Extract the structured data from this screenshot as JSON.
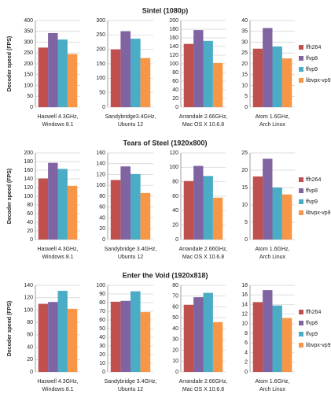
{
  "chart_data": [
    {
      "type": "bar",
      "title": "Sintel (1080p)",
      "y_label": "Decoder speed (FPS)",
      "grid": true,
      "series": [
        {
          "name": "ffh264",
          "color": "#c0504d"
        },
        {
          "name": "ffvp8",
          "color": "#8064a2"
        },
        {
          "name": "ffvp9",
          "color": "#4bacc6"
        },
        {
          "name": "libvpx-vp9",
          "color": "#f79646"
        }
      ],
      "panels": [
        {
          "label": [
            "Haswell 4.3GHz,",
            "Windows 8.1"
          ],
          "values": [
            275,
            342,
            312,
            245
          ],
          "ylim": [
            0,
            400
          ],
          "yticks": [
            0,
            50,
            100,
            150,
            200,
            250,
            300,
            350,
            400
          ]
        },
        {
          "label": [
            "Sandybridge3.4GHz,",
            "Ubuntu 12"
          ],
          "values": [
            200,
            263,
            237,
            170
          ],
          "ylim": [
            0,
            300
          ],
          "yticks": [
            0,
            50,
            100,
            150,
            200,
            250,
            300
          ]
        },
        {
          "label": [
            "Arrandale 2.66GHz,",
            "Mac OS X 10.6.8"
          ],
          "values": [
            146,
            178,
            153,
            102
          ],
          "ylim": [
            0,
            200
          ],
          "yticks": [
            0,
            20,
            40,
            60,
            80,
            100,
            120,
            140,
            160,
            180,
            200
          ]
        },
        {
          "label": [
            "Atom 1.6GHz,",
            "Arch Linux"
          ],
          "values": [
            27,
            36.5,
            28,
            22.5
          ],
          "ylim": [
            0,
            40
          ],
          "yticks": [
            0,
            5,
            10,
            15,
            20,
            25,
            30,
            35,
            40
          ]
        }
      ]
    },
    {
      "type": "bar",
      "title": "Tears of Steel (1920x800)",
      "y_label": "Decoder speed (FPS)",
      "grid": true,
      "series": [
        {
          "name": "ffh264",
          "color": "#c0504d"
        },
        {
          "name": "ffvp8",
          "color": "#8064a2"
        },
        {
          "name": "ffvp9",
          "color": "#4bacc6"
        },
        {
          "name": "libvpx-vp9",
          "color": "#f79646"
        }
      ],
      "panels": [
        {
          "label": [
            "Haswell 4.3GHz,",
            "Windows 8.1"
          ],
          "values": [
            141,
            177,
            163,
            124
          ],
          "ylim": [
            0,
            200
          ],
          "yticks": [
            0,
            20,
            40,
            60,
            80,
            100,
            120,
            140,
            160,
            180,
            200
          ]
        },
        {
          "label": [
            "Sandybridge 3.4GHz,",
            "Ubuntu 12"
          ],
          "values": [
            110,
            135,
            121,
            86
          ],
          "ylim": [
            0,
            160
          ],
          "yticks": [
            0,
            20,
            40,
            60,
            80,
            100,
            120,
            140,
            160
          ]
        },
        {
          "label": [
            "Arrandale 2.66GHz,",
            "Mac OS X 10.6.8"
          ],
          "values": [
            81,
            102,
            88,
            58
          ],
          "ylim": [
            0,
            120
          ],
          "yticks": [
            0,
            20,
            40,
            60,
            80,
            100,
            120
          ]
        },
        {
          "label": [
            "Atom 1.6GHz,",
            "Arch Linux"
          ],
          "values": [
            18.2,
            23.3,
            15,
            13
          ],
          "ylim": [
            0,
            25
          ],
          "yticks": [
            0,
            5,
            10,
            15,
            20,
            25
          ]
        }
      ]
    },
    {
      "type": "bar",
      "title": "Enter the Void (1920x818)",
      "y_label": "Decoder speed (FPS)",
      "grid": true,
      "series": [
        {
          "name": "ffh264",
          "color": "#c0504d"
        },
        {
          "name": "ffvp8",
          "color": "#8064a2"
        },
        {
          "name": "ffvp9",
          "color": "#4bacc6"
        },
        {
          "name": "libvpx-vp9",
          "color": "#f79646"
        }
      ],
      "panels": [
        {
          "label": [
            "Haswell 4.3GHz,",
            "Windows 8.1"
          ],
          "values": [
            110,
            113,
            131,
            102
          ],
          "ylim": [
            0,
            140
          ],
          "yticks": [
            0,
            20,
            40,
            60,
            80,
            100,
            120,
            140
          ]
        },
        {
          "label": [
            "Sandybridge 3.4GHz,",
            "Ubuntu 12"
          ],
          "values": [
            81,
            82,
            93,
            69
          ],
          "ylim": [
            0,
            100
          ],
          "yticks": [
            0,
            10,
            20,
            30,
            40,
            50,
            60,
            70,
            80,
            90,
            100
          ]
        },
        {
          "label": [
            "Arrandale 2.66GHz,",
            "Mac OS X 10.6.8"
          ],
          "values": [
            62,
            69,
            73,
            46
          ],
          "ylim": [
            0,
            80
          ],
          "yticks": [
            0,
            10,
            20,
            30,
            40,
            50,
            60,
            70,
            80
          ]
        },
        {
          "label": [
            "Atom 1.6GHz,",
            "Arch Linux"
          ],
          "values": [
            14.5,
            17,
            13.8,
            11.2
          ],
          "ylim": [
            0,
            18
          ],
          "yticks": [
            0,
            2,
            4,
            6,
            8,
            10,
            12,
            14,
            16,
            18
          ]
        }
      ]
    }
  ]
}
